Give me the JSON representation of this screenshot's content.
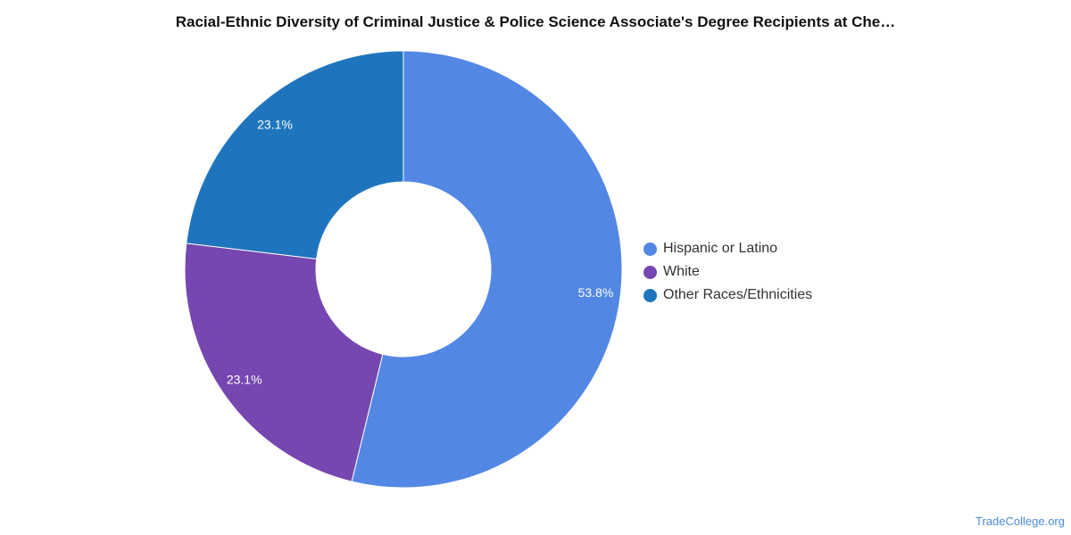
{
  "chart_data": {
    "type": "pie",
    "variant": "donut",
    "title": "Racial-Ethnic Diversity of Criminal Justice & Police Science Associate's Degree Recipients at Che…",
    "categories": [
      "Hispanic or Latino",
      "White",
      "Other Races/Ethnicities"
    ],
    "values": [
      53.8,
      23.1,
      23.1
    ],
    "labels": [
      "53.8%",
      "23.1%",
      "23.1%"
    ],
    "colors": [
      "#5387e4",
      "#7647b0",
      "#1f75bd"
    ],
    "legend_position": "right"
  },
  "watermark": "TradeCollege.org"
}
